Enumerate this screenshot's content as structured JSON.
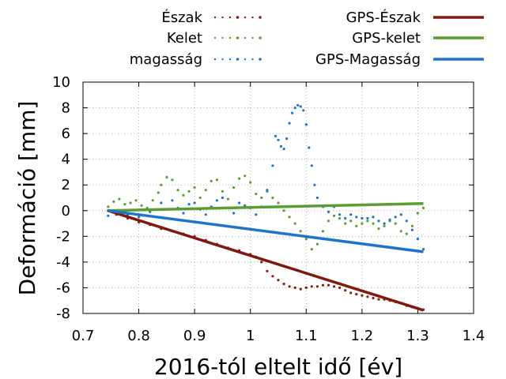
{
  "chart_data": {
    "type": "scatter",
    "xlabel": "2016-tól eltelt idő [év]",
    "ylabel": "Deformáció [mm]",
    "xlim": [
      0.7,
      1.4
    ],
    "ylim": [
      -8,
      10
    ],
    "x_ticks": [
      0.7,
      0.8,
      0.9,
      1.0,
      1.1,
      1.2,
      1.3,
      1.4
    ],
    "x_tick_labels": [
      "0.7",
      "0.8",
      "0.9",
      "1",
      "1.1",
      "1.2",
      "1.3",
      "1.4"
    ],
    "y_ticks": [
      -8,
      -6,
      -4,
      -2,
      0,
      2,
      4,
      6,
      8,
      10
    ],
    "y_tick_labels": [
      "-8",
      "-6",
      "-4",
      "-2",
      "0",
      "2",
      "4",
      "6",
      "8",
      "10"
    ],
    "grid": true,
    "legend_position": "top",
    "series": [
      {
        "name": "Észak",
        "kind": "points",
        "color": "#8b1a10",
        "points": [
          [
            0.745,
            0.0
          ],
          [
            0.76,
            -0.3
          ],
          [
            0.78,
            -0.6
          ],
          [
            0.8,
            -0.9
          ],
          [
            0.82,
            -1.1
          ],
          [
            0.84,
            -1.4
          ],
          [
            0.86,
            -1.6
          ],
          [
            0.88,
            -1.8
          ],
          [
            0.9,
            -2.0
          ],
          [
            0.92,
            -2.3
          ],
          [
            0.94,
            -2.6
          ],
          [
            0.96,
            -2.9
          ],
          [
            0.98,
            -3.1
          ],
          [
            1.0,
            -3.4
          ],
          [
            1.01,
            -3.6
          ],
          [
            1.02,
            -4.0
          ],
          [
            1.03,
            -4.7
          ],
          [
            1.04,
            -5.1
          ],
          [
            1.05,
            -5.4
          ],
          [
            1.06,
            -5.7
          ],
          [
            1.07,
            -5.9
          ],
          [
            1.08,
            -6.0
          ],
          [
            1.09,
            -6.1
          ],
          [
            1.1,
            -6.0
          ],
          [
            1.11,
            -5.9
          ],
          [
            1.12,
            -5.9
          ],
          [
            1.13,
            -5.8
          ],
          [
            1.14,
            -5.8
          ],
          [
            1.15,
            -5.9
          ],
          [
            1.16,
            -6.0
          ],
          [
            1.17,
            -6.2
          ],
          [
            1.18,
            -6.4
          ],
          [
            1.19,
            -6.5
          ],
          [
            1.2,
            -6.6
          ],
          [
            1.21,
            -6.7
          ],
          [
            1.22,
            -6.8
          ],
          [
            1.23,
            -6.9
          ],
          [
            1.24,
            -6.9
          ],
          [
            1.25,
            -7.0
          ],
          [
            1.26,
            -7.1
          ],
          [
            1.27,
            -7.2
          ],
          [
            1.28,
            -7.4
          ],
          [
            1.29,
            -7.5
          ],
          [
            1.3,
            -7.6
          ],
          [
            1.31,
            -7.7
          ]
        ]
      },
      {
        "name": "Kelet",
        "kind": "points",
        "color": "#5a9e33",
        "points": [
          [
            0.745,
            0.3
          ],
          [
            0.755,
            0.7
          ],
          [
            0.765,
            0.9
          ],
          [
            0.775,
            0.5
          ],
          [
            0.785,
            0.6
          ],
          [
            0.795,
            0.8
          ],
          [
            0.805,
            0.4
          ],
          [
            0.815,
            0.2
          ],
          [
            0.825,
            0.8
          ],
          [
            0.835,
            1.4
          ],
          [
            0.84,
            2.0
          ],
          [
            0.85,
            2.6
          ],
          [
            0.86,
            2.4
          ],
          [
            0.87,
            1.6
          ],
          [
            0.88,
            1.2
          ],
          [
            0.89,
            1.5
          ],
          [
            0.9,
            1.8
          ],
          [
            0.91,
            1.0
          ],
          [
            0.92,
            1.6
          ],
          [
            0.93,
            2.3
          ],
          [
            0.94,
            2.4
          ],
          [
            0.95,
            1.5
          ],
          [
            0.96,
            0.9
          ],
          [
            0.97,
            1.8
          ],
          [
            0.98,
            2.5
          ],
          [
            0.99,
            2.7
          ],
          [
            1.0,
            2.2
          ],
          [
            1.01,
            1.3
          ],
          [
            1.02,
            1.0
          ],
          [
            1.03,
            1.5
          ],
          [
            1.04,
            1.0
          ],
          [
            1.05,
            0.6
          ],
          [
            1.06,
            0.0
          ],
          [
            1.07,
            -0.5
          ],
          [
            1.08,
            -1.0
          ],
          [
            1.09,
            -1.6
          ],
          [
            1.1,
            -2.2
          ],
          [
            1.11,
            -3.0
          ],
          [
            1.12,
            -2.6
          ],
          [
            1.13,
            -1.6
          ],
          [
            1.14,
            -0.8
          ],
          [
            1.15,
            -0.4
          ],
          [
            1.16,
            -0.6
          ],
          [
            1.17,
            -1.0
          ],
          [
            1.18,
            -0.8
          ],
          [
            1.19,
            -1.2
          ],
          [
            1.2,
            -1.0
          ],
          [
            1.21,
            -0.8
          ],
          [
            1.22,
            -1.0
          ],
          [
            1.23,
            -1.4
          ],
          [
            1.24,
            -1.2
          ],
          [
            1.25,
            -0.8
          ],
          [
            1.26,
            -1.0
          ],
          [
            1.27,
            -1.6
          ],
          [
            1.28,
            -1.8
          ],
          [
            1.29,
            -1.2
          ],
          [
            1.3,
            -0.2
          ],
          [
            1.31,
            0.2
          ]
        ]
      },
      {
        "name": "magasság",
        "kind": "points",
        "color": "#1f74c9",
        "points": [
          [
            0.745,
            -0.4
          ],
          [
            0.76,
            -0.2
          ],
          [
            0.78,
            -0.3
          ],
          [
            0.8,
            -0.5
          ],
          [
            0.82,
            -0.1
          ],
          [
            0.84,
            0.6
          ],
          [
            0.86,
            0.8
          ],
          [
            0.87,
            0.2
          ],
          [
            0.88,
            -0.2
          ],
          [
            0.89,
            0.5
          ],
          [
            0.9,
            0.6
          ],
          [
            0.91,
            0.1
          ],
          [
            0.92,
            -0.3
          ],
          [
            0.93,
            0.3
          ],
          [
            0.94,
            0.8
          ],
          [
            0.95,
            1.0
          ],
          [
            0.96,
            0.2
          ],
          [
            0.97,
            -0.2
          ],
          [
            0.98,
            0.6
          ],
          [
            0.99,
            0.4
          ],
          [
            1.0,
            0.2
          ],
          [
            1.01,
            -0.3
          ],
          [
            1.02,
            0.3
          ],
          [
            1.03,
            1.6
          ],
          [
            1.04,
            3.5
          ],
          [
            1.045,
            5.8
          ],
          [
            1.05,
            5.5
          ],
          [
            1.055,
            5.0
          ],
          [
            1.06,
            4.8
          ],
          [
            1.065,
            5.6
          ],
          [
            1.07,
            6.8
          ],
          [
            1.075,
            7.6
          ],
          [
            1.08,
            8.0
          ],
          [
            1.085,
            8.2
          ],
          [
            1.09,
            8.1
          ],
          [
            1.095,
            7.8
          ],
          [
            1.1,
            6.7
          ],
          [
            1.105,
            4.9
          ],
          [
            1.11,
            3.5
          ],
          [
            1.115,
            2.0
          ],
          [
            1.12,
            1.0
          ],
          [
            1.13,
            0.3
          ],
          [
            1.14,
            -0.1
          ],
          [
            1.15,
            0.3
          ],
          [
            1.16,
            -0.3
          ],
          [
            1.17,
            -0.6
          ],
          [
            1.18,
            -0.3
          ],
          [
            1.19,
            -0.5
          ],
          [
            1.2,
            -0.6
          ],
          [
            1.21,
            -0.6
          ],
          [
            1.22,
            -0.5
          ],
          [
            1.23,
            -0.8
          ],
          [
            1.24,
            -1.0
          ],
          [
            1.25,
            -0.7
          ],
          [
            1.26,
            -0.5
          ],
          [
            1.27,
            -0.3
          ],
          [
            1.28,
            -0.8
          ],
          [
            1.29,
            -1.5
          ],
          [
            1.3,
            -2.2
          ],
          [
            1.31,
            -3.0
          ]
        ]
      },
      {
        "name": "GPS-Észak",
        "kind": "line",
        "color": "#801a0e",
        "points": [
          [
            0.745,
            0.0
          ],
          [
            1.31,
            -7.75
          ]
        ]
      },
      {
        "name": "GPS-kelet",
        "kind": "line",
        "color": "#5a9e33",
        "points": [
          [
            0.745,
            0.0
          ],
          [
            1.31,
            0.55
          ]
        ]
      },
      {
        "name": "GPS-Magasság",
        "kind": "line",
        "color": "#1f74c9",
        "points": [
          [
            0.745,
            0.0
          ],
          [
            1.31,
            -3.2
          ]
        ]
      }
    ]
  }
}
